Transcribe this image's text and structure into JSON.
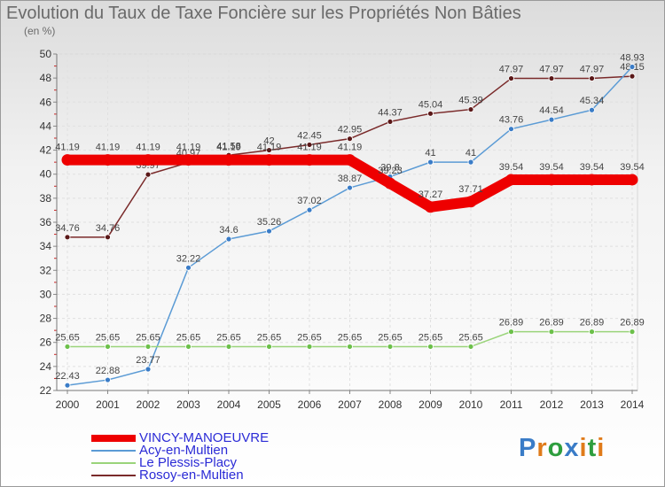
{
  "title": "Evolution du Taux de Taxe Foncière sur les Propriétés Non Bâties",
  "unit_label": "(en %)",
  "brand": {
    "text": "Proxiti",
    "colors": [
      "#3a7cc7",
      "#e07b1a",
      "#2e9e3e",
      "#3a7cc7",
      "#e07b1a",
      "#2e9e3e",
      "#e07b1a"
    ]
  },
  "chart_data": {
    "type": "line",
    "title": "Evolution du Taux de Taxe Foncière sur les Propriétés Non Bâties",
    "ylabel": "(en %)",
    "xlabel": "",
    "ylim": [
      22,
      50
    ],
    "yticks": [
      22,
      24,
      26,
      28,
      30,
      32,
      34,
      36,
      38,
      40,
      42,
      44,
      46,
      48,
      50
    ],
    "grid": true,
    "categories": [
      "2000",
      "2001",
      "2002",
      "2003",
      "2004",
      "2005",
      "2006",
      "2007",
      "2008",
      "2009",
      "2010",
      "2011",
      "2012",
      "2013",
      "2014"
    ],
    "series": [
      {
        "name": "Rosoy-en-Multien",
        "color": "#7a2a2a",
        "marker": "#5a1818",
        "bold": false,
        "values": [
          34.76,
          34.76,
          39.97,
          40.97,
          41.58,
          42,
          42.45,
          42.95,
          44.37,
          45.04,
          45.39,
          47.97,
          47.97,
          47.97,
          48.15
        ],
        "labels": [
          "34.76",
          "34.76",
          "39.97",
          "40.97",
          "41.58",
          "42",
          "42.45",
          "42.95",
          "44.37",
          "45.04",
          "45.39",
          "47.97",
          "47.97",
          "47.97",
          "48.15"
        ]
      },
      {
        "name": "Acy-en-Multien",
        "color": "#5b9bd5",
        "marker": "#3a7cc7",
        "bold": false,
        "values": [
          22.43,
          22.88,
          23.77,
          32.22,
          34.6,
          35.26,
          37.02,
          38.87,
          39.8,
          41,
          41,
          43.76,
          44.54,
          45.34,
          48.93
        ],
        "labels": [
          "22.43",
          "22.88",
          "23.77",
          "32.22",
          "34.6",
          "35.26",
          "37.02",
          "38.87",
          "39.8",
          "41",
          "41",
          "43.76",
          "44.54",
          "45.34",
          "48.93"
        ]
      },
      {
        "name": "Le Plessis-Placy",
        "color": "#9ad47a",
        "marker": "#6cc04a",
        "bold": false,
        "values": [
          25.65,
          25.65,
          25.65,
          25.65,
          25.65,
          25.65,
          25.65,
          25.65,
          25.65,
          25.65,
          25.65,
          26.89,
          26.89,
          26.89,
          26.89
        ],
        "labels": [
          "25.65",
          "25.65",
          "25.65",
          "25.65",
          "25.65",
          "25.65",
          "25.65",
          "25.65",
          "25.65",
          "25.65",
          "25.65",
          "26.89",
          "26.89",
          "26.89",
          "26.89"
        ]
      },
      {
        "name": "VINCY-MANOEUVRE",
        "color": "#ee0000",
        "marker": "#ee0000",
        "bold": true,
        "values": [
          41.19,
          41.19,
          41.19,
          41.19,
          41.19,
          41.19,
          41.19,
          41.19,
          39.23,
          37.27,
          37.71,
          39.54,
          39.54,
          39.54,
          39.54
        ],
        "labels": [
          "41.19",
          "41.19",
          "41.19",
          "41.19",
          "41.19",
          "41.19",
          "41.19",
          "41.19",
          "39.23",
          "37.27",
          "37.71",
          "39.54",
          "39.54",
          "39.54",
          "39.54"
        ]
      }
    ],
    "legend": [
      {
        "name": "VINCY-MANOEUVRE",
        "color": "#ee0000",
        "text_color": "#2b2bd6"
      },
      {
        "name": "Acy-en-Multien",
        "color": "#5b9bd5",
        "text_color": "#2b2bd6"
      },
      {
        "name": "Le Plessis-Placy",
        "color": "#9ad47a",
        "text_color": "#2b2bd6"
      },
      {
        "name": "Rosoy-en-Multien",
        "color": "#7a2a2a",
        "text_color": "#2b2bd6"
      }
    ]
  }
}
